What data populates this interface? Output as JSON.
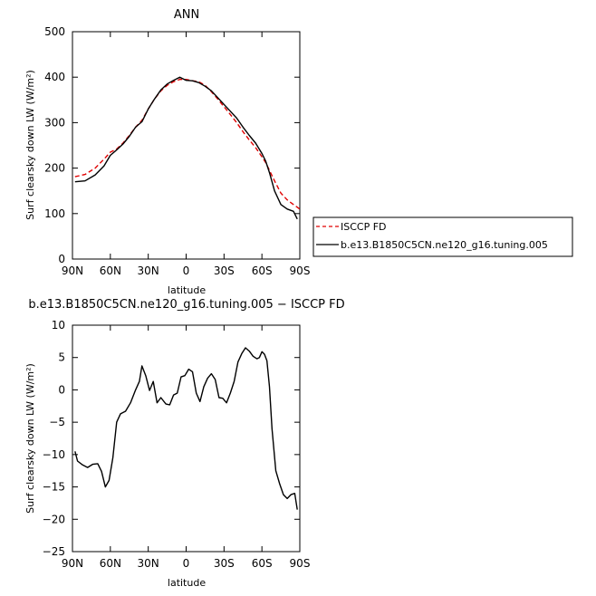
{
  "chart_data": [
    {
      "type": "line",
      "title": "ANN",
      "xlabel": "latitude",
      "ylabel": "Surf clearsky down LW (W/m²)",
      "xlim": [
        90,
        -90
      ],
      "ylim": [
        0,
        500
      ],
      "xticks": [
        90,
        60,
        30,
        0,
        -30,
        -60,
        -90
      ],
      "xtick_labels": [
        "90N",
        "60N",
        "30N",
        "0",
        "30S",
        "60S",
        "90S"
      ],
      "yticks": [
        0,
        100,
        200,
        300,
        400,
        500
      ],
      "ytick_labels": [
        "0",
        "100",
        "200",
        "300",
        "400",
        "500"
      ],
      "legend_position": "outside-right",
      "series": [
        {
          "name": "ISCCP FD",
          "color": "#e00000",
          "dash": true,
          "x": [
            88,
            80,
            72,
            65,
            60,
            55,
            50,
            45,
            40,
            35,
            30,
            25,
            20,
            15,
            10,
            5,
            0,
            -5,
            -10,
            -15,
            -20,
            -25,
            -30,
            -35,
            -40,
            -45,
            -50,
            -55,
            -60,
            -63,
            -66,
            -70,
            -75,
            -80,
            -85,
            -90
          ],
          "y": [
            181,
            186,
            200,
            220,
            235,
            242,
            255,
            272,
            290,
            305,
            330,
            352,
            370,
            382,
            390,
            395,
            395,
            392,
            390,
            382,
            368,
            352,
            335,
            318,
            300,
            280,
            262,
            245,
            225,
            212,
            195,
            172,
            145,
            130,
            120,
            110
          ]
        },
        {
          "name": "b.e13.B1850C5CN.ne120_g16.tuning.005",
          "color": "#000000",
          "dash": false,
          "x": [
            88,
            80,
            72,
            65,
            60,
            55,
            50,
            45,
            40,
            35,
            30,
            25,
            20,
            15,
            10,
            5,
            0,
            -5,
            -10,
            -15,
            -20,
            -25,
            -30,
            -35,
            -40,
            -45,
            -50,
            -55,
            -60,
            -63,
            -66,
            -70,
            -75,
            -80,
            -85,
            -88
          ],
          "y": [
            170,
            172,
            185,
            205,
            228,
            240,
            253,
            270,
            290,
            302,
            330,
            352,
            372,
            385,
            393,
            400,
            393,
            392,
            388,
            380,
            370,
            355,
            340,
            325,
            310,
            290,
            272,
            255,
            232,
            215,
            190,
            150,
            120,
            110,
            105,
            88
          ]
        }
      ]
    },
    {
      "type": "line",
      "title": "b.e13.B1850C5CN.ne120_g16.tuning.005 − ISCCP FD",
      "xlabel": "latitude",
      "ylabel": "Surf clearsky down LW (W/m²)",
      "xlim": [
        90,
        -90
      ],
      "ylim": [
        -25,
        10
      ],
      "xticks": [
        90,
        60,
        30,
        0,
        -30,
        -60,
        -90
      ],
      "xtick_labels": [
        "90N",
        "60N",
        "30N",
        "0",
        "30S",
        "60S",
        "90S"
      ],
      "yticks": [
        -25,
        -20,
        -15,
        -10,
        -5,
        0,
        5,
        10
      ],
      "ytick_labels": [
        "−25",
        "−20",
        "−15",
        "−10",
        "−5",
        "0",
        "5",
        "10"
      ],
      "series": [
        {
          "color": "#000000",
          "x": [
            88,
            86,
            82,
            78,
            74,
            70,
            67,
            64,
            61,
            58,
            55,
            52,
            48,
            44,
            40,
            37,
            35,
            32,
            29,
            26,
            23,
            20,
            16,
            13,
            10,
            7,
            4,
            1,
            -2,
            -5,
            -8,
            -11,
            -14,
            -17,
            -20,
            -23,
            -26,
            -29,
            -32,
            -35,
            -38,
            -41,
            -44,
            -47,
            -50,
            -53,
            -56,
            -58,
            -60,
            -62,
            -64,
            -66,
            -68,
            -71,
            -74,
            -77,
            -80,
            -83,
            -86,
            -88
          ],
          "y": [
            -9.5,
            -11,
            -11.6,
            -12,
            -11.5,
            -11.4,
            -12.6,
            -15,
            -14,
            -10.5,
            -5,
            -3.7,
            -3.3,
            -2,
            0,
            1.3,
            3.7,
            2.2,
            -0.1,
            1.3,
            -2,
            -1.2,
            -2.2,
            -2.3,
            -0.8,
            -0.5,
            2.0,
            2.2,
            3.2,
            2.8,
            -0.5,
            -1.8,
            0.5,
            1.8,
            2.5,
            1.6,
            -1.2,
            -1.3,
            -2,
            -0.5,
            1.3,
            4.3,
            5.6,
            6.5,
            6.0,
            5.2,
            4.8,
            5.0,
            5.9,
            5.5,
            4.5,
            0.5,
            -6,
            -12.5,
            -14.5,
            -16.2,
            -16.8,
            -16.2,
            -16.0,
            -18.5
          ]
        }
      ]
    }
  ]
}
